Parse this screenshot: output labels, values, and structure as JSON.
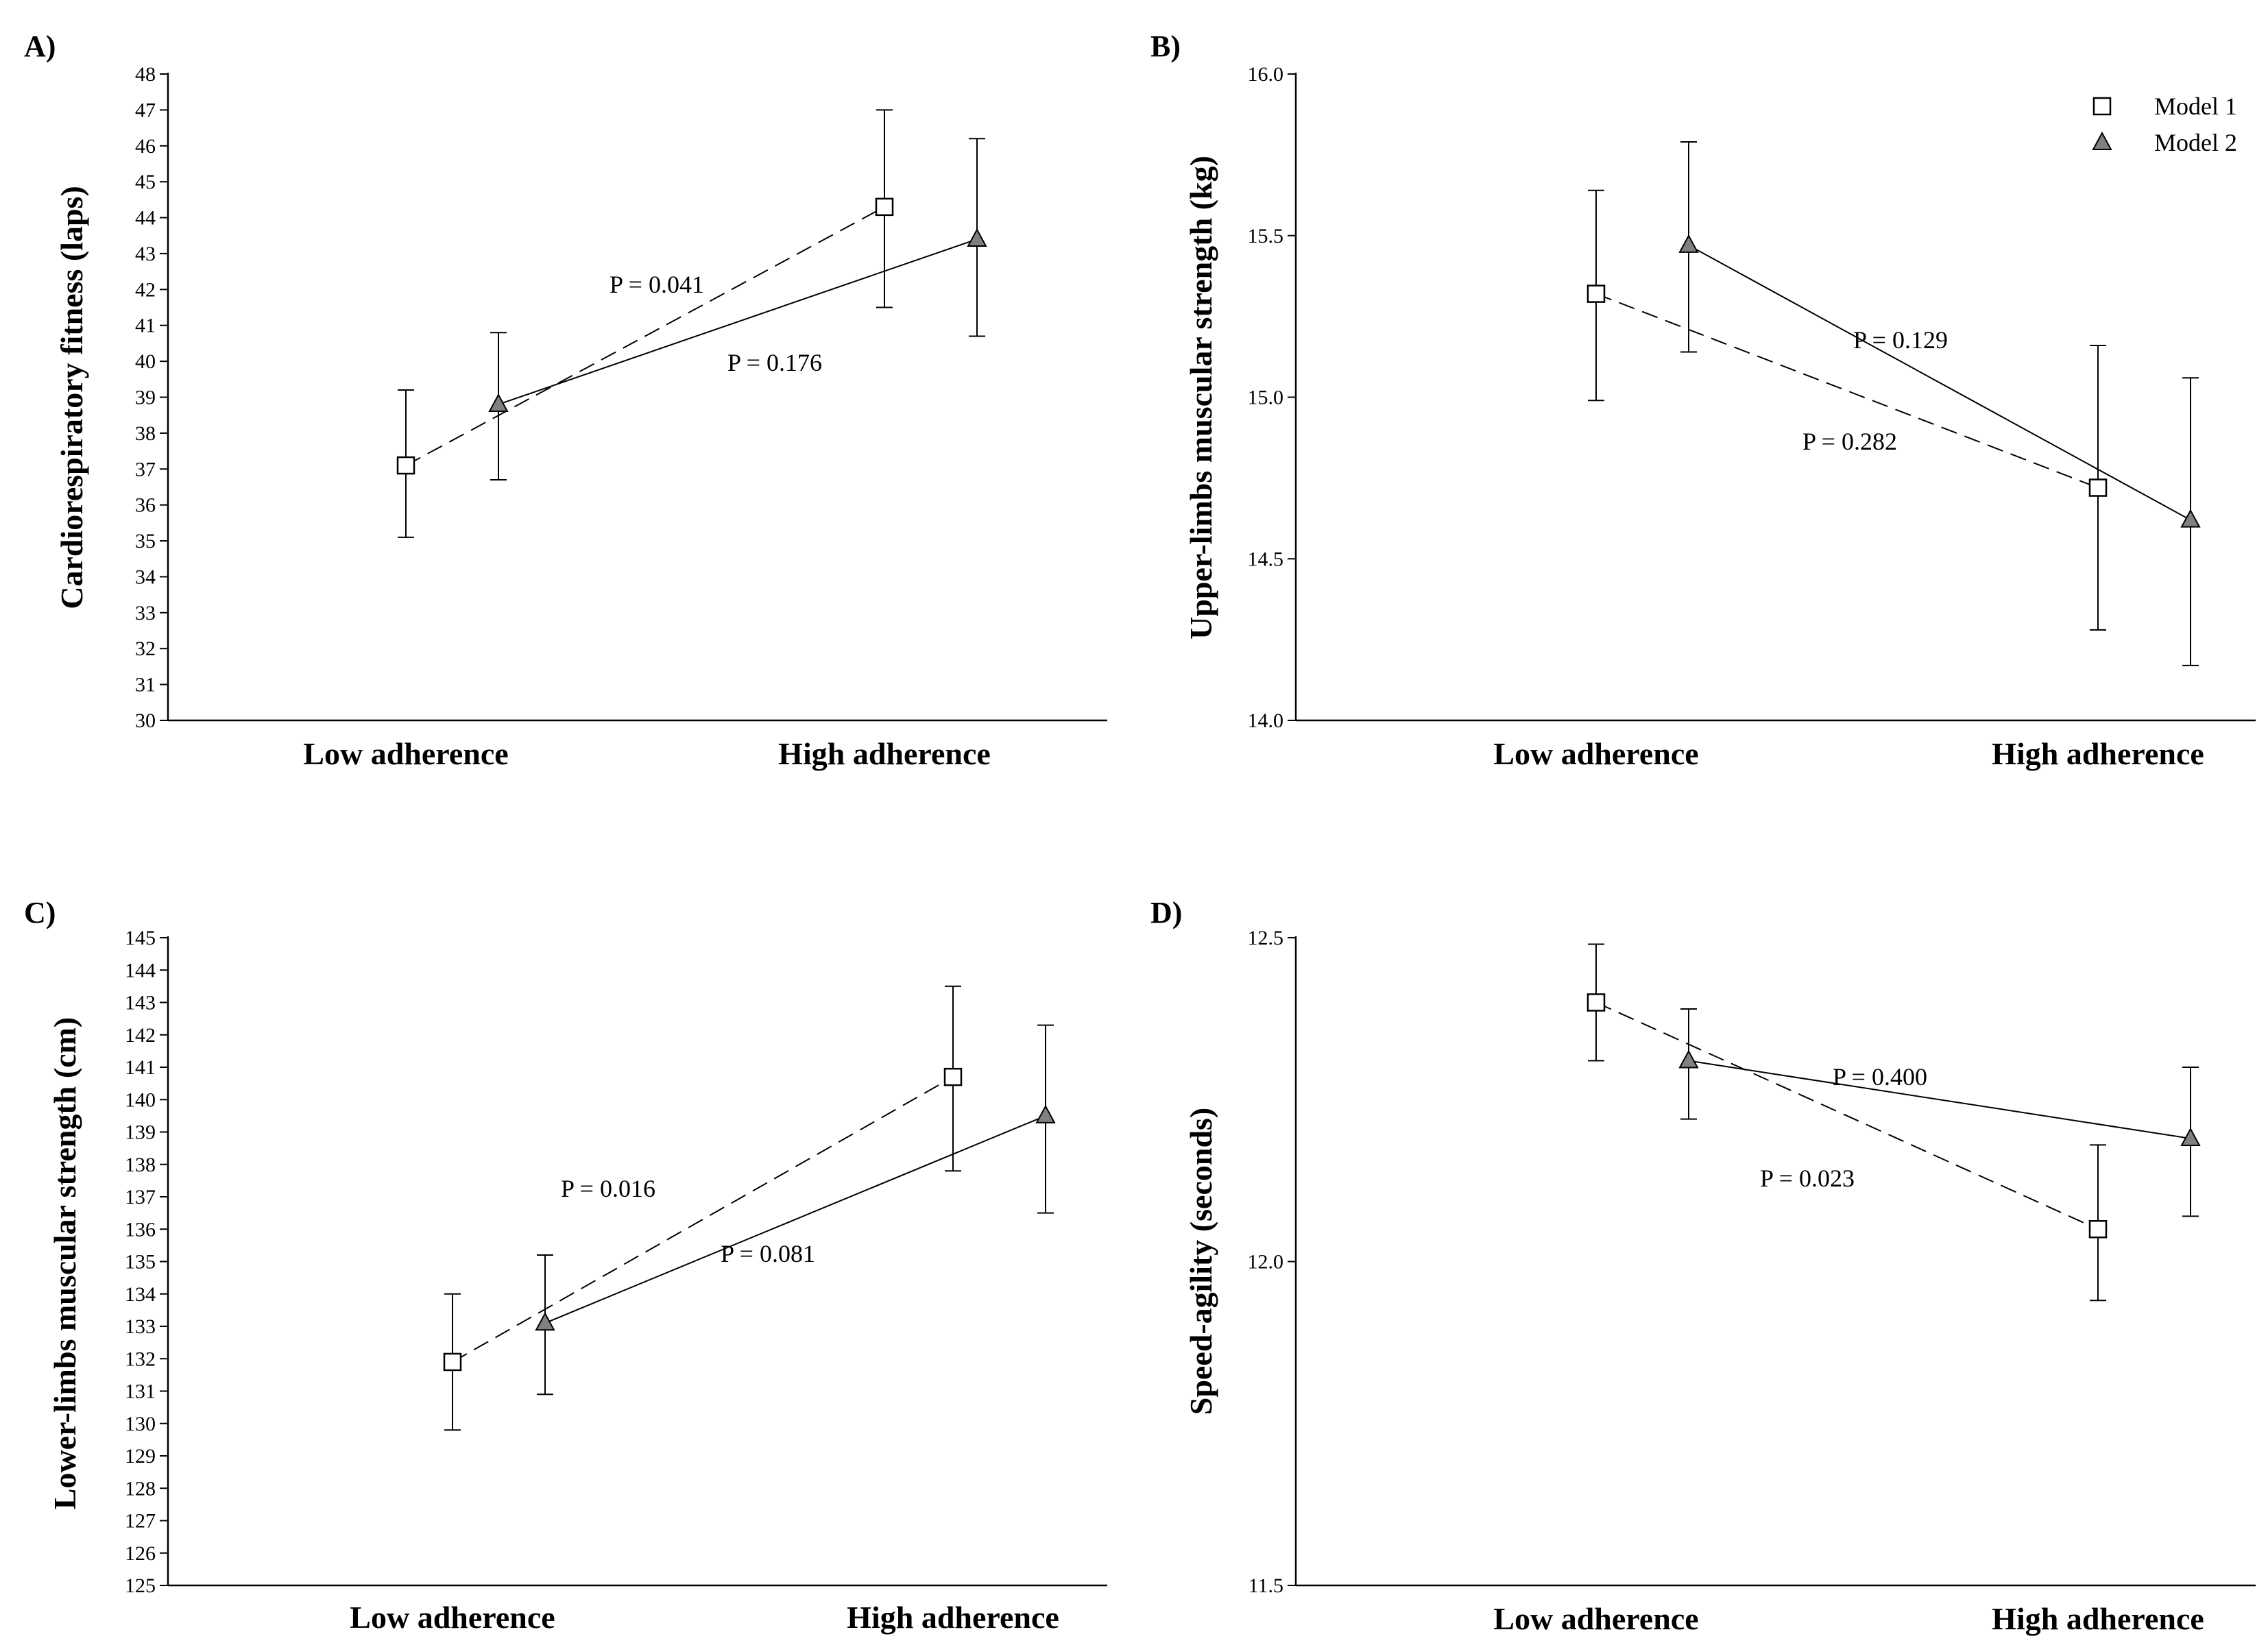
{
  "legend": {
    "items": [
      {
        "label": "Model 1",
        "marker": "open-square"
      },
      {
        "label": "Model 2",
        "marker": "filled-triangle"
      }
    ]
  },
  "colors": {
    "line": "#000000",
    "triangle_fill": "#808080",
    "square_fill": "#ffffff",
    "background": "#ffffff"
  },
  "chart_data": [
    {
      "panel": "A)",
      "type": "line",
      "ylabel": "Cardiorespiratory fitness (laps)",
      "categories": [
        "Low adherence",
        "High adherence"
      ],
      "ylim": [
        30,
        48
      ],
      "yticks": [
        30,
        31,
        32,
        33,
        34,
        35,
        36,
        37,
        38,
        39,
        40,
        41,
        42,
        43,
        44,
        45,
        46,
        47,
        48
      ],
      "tick_decimals": 0,
      "series": [
        {
          "name": "Model 1",
          "marker": "square",
          "dash": "dashed",
          "values": [
            37.1,
            44.3
          ],
          "err_low": [
            35.1,
            41.5
          ],
          "err_high": [
            39.2,
            47.0
          ],
          "p_label": "P = 0.041"
        },
        {
          "name": "Model 2",
          "marker": "triangle",
          "dash": "solid",
          "values": [
            38.8,
            43.4
          ],
          "err_low": [
            36.7,
            40.7
          ],
          "err_high": [
            40.8,
            46.2
          ],
          "p_label": "P = 0.176"
        }
      ]
    },
    {
      "panel": "B)",
      "type": "line",
      "ylabel": "Upper-limbs muscular strength (kg)",
      "categories": [
        "Low adherence",
        "High adherence"
      ],
      "ylim": [
        14.0,
        16.0
      ],
      "yticks": [
        14.0,
        14.5,
        15.0,
        15.5,
        16.0
      ],
      "tick_decimals": 1,
      "series": [
        {
          "name": "Model 1",
          "marker": "square",
          "dash": "dashed",
          "values": [
            15.32,
            14.72
          ],
          "err_low": [
            14.99,
            14.28
          ],
          "err_high": [
            15.64,
            15.16
          ],
          "p_label": "P = 0.282"
        },
        {
          "name": "Model 2",
          "marker": "triangle",
          "dash": "solid",
          "values": [
            15.47,
            14.62
          ],
          "err_low": [
            15.14,
            14.17
          ],
          "err_high": [
            15.79,
            15.06
          ],
          "p_label": "P = 0.129"
        }
      ]
    },
    {
      "panel": "C)",
      "type": "line",
      "ylabel": "Lower-limbs muscular strength (cm)",
      "categories": [
        "Low adherence",
        "High adherence"
      ],
      "ylim": [
        125,
        145
      ],
      "yticks": [
        125,
        126,
        127,
        128,
        129,
        130,
        131,
        132,
        133,
        134,
        135,
        136,
        137,
        138,
        139,
        140,
        141,
        142,
        143,
        144,
        145
      ],
      "tick_decimals": 0,
      "series": [
        {
          "name": "Model 1",
          "marker": "square",
          "dash": "dashed",
          "values": [
            131.9,
            140.7
          ],
          "err_low": [
            129.8,
            137.8
          ],
          "err_high": [
            134.0,
            143.5
          ],
          "p_label": "P = 0.016"
        },
        {
          "name": "Model 2",
          "marker": "triangle",
          "dash": "solid",
          "values": [
            133.1,
            139.5
          ],
          "err_low": [
            130.9,
            136.5
          ],
          "err_high": [
            135.2,
            142.3
          ],
          "p_label": "P = 0.081"
        }
      ]
    },
    {
      "panel": "D)",
      "type": "line",
      "ylabel": "Speed-agility (seconds)",
      "categories": [
        "Low adherence",
        "High adherence"
      ],
      "ylim": [
        11.5,
        12.5
      ],
      "yticks": [
        11.5,
        12.0,
        12.5
      ],
      "tick_decimals": 1,
      "series": [
        {
          "name": "Model 1",
          "marker": "square",
          "dash": "dashed",
          "values": [
            12.4,
            12.05
          ],
          "err_low": [
            12.31,
            11.94
          ],
          "err_high": [
            12.49,
            12.18
          ],
          "p_label": "P = 0.023"
        },
        {
          "name": "Model 2",
          "marker": "triangle",
          "dash": "solid",
          "values": [
            12.31,
            12.19
          ],
          "err_low": [
            12.22,
            12.07
          ],
          "err_high": [
            12.39,
            12.3
          ],
          "p_label": "P = 0.400"
        }
      ]
    }
  ]
}
